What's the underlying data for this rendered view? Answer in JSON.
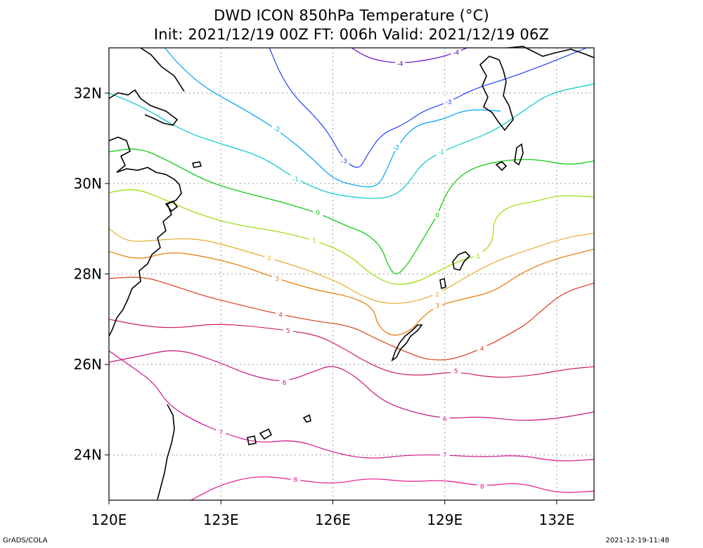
{
  "title": "DWD ICON 850hPa Temperature (°C)",
  "subtitle": "Init: 2021/12/19 00Z  FT: 006h  Valid: 2021/12/19 06Z",
  "footer_left": "GrADS/COLA",
  "footer_right": "2021-12-19-11:48",
  "chart_data": {
    "type": "contour",
    "title": "DWD ICON 850hPa Temperature (°C)",
    "subtitle": "Init: 2021/12/19 00Z  FT: 006h  Valid: 2021/12/19 06Z",
    "xlim": [
      120,
      133
    ],
    "ylim": [
      23,
      33
    ],
    "x_ticks": [
      120,
      123,
      126,
      129,
      132
    ],
    "x_tick_labels": [
      "120E",
      "123E",
      "126E",
      "129E",
      "132E"
    ],
    "y_ticks": [
      24,
      26,
      28,
      30,
      32
    ],
    "y_tick_labels": [
      "24N",
      "26N",
      "28N",
      "30N",
      "32N"
    ],
    "grid": true,
    "contour_interval": 1,
    "levels": [
      {
        "value": -4,
        "color": "#6e00c8",
        "label": "-4",
        "points": [
          [
            126.5,
            33.0
          ],
          [
            127.0,
            32.75
          ],
          [
            127.8,
            32.65
          ],
          [
            128.7,
            32.75
          ],
          [
            129.3,
            32.9
          ],
          [
            129.6,
            33.0
          ]
        ]
      },
      {
        "value": -3,
        "color": "#1e3cff",
        "label": "-3",
        "points": [
          [
            124.3,
            33.0
          ],
          [
            124.6,
            32.4
          ],
          [
            125.0,
            31.9
          ],
          [
            125.5,
            31.5
          ],
          [
            125.9,
            31.1
          ],
          [
            126.3,
            30.5
          ],
          [
            126.7,
            30.3
          ],
          [
            126.9,
            30.6
          ],
          [
            127.3,
            31.1
          ],
          [
            127.9,
            31.3
          ],
          [
            128.4,
            31.6
          ],
          [
            129.1,
            31.8
          ],
          [
            129.8,
            32.1
          ],
          [
            130.6,
            32.3
          ],
          [
            131.6,
            32.6
          ],
          [
            132.8,
            33.0
          ]
        ]
      },
      {
        "value": -2,
        "color": "#00a0ff",
        "label": "-2",
        "points": [
          [
            121.5,
            33.0
          ],
          [
            121.9,
            32.6
          ],
          [
            122.6,
            32.1
          ],
          [
            123.5,
            31.7
          ],
          [
            124.5,
            31.2
          ],
          [
            125.4,
            30.6
          ],
          [
            126.0,
            30.1
          ],
          [
            126.6,
            29.95
          ],
          [
            127.2,
            29.9
          ],
          [
            127.5,
            30.4
          ],
          [
            127.7,
            30.8
          ],
          [
            128.2,
            31.3
          ],
          [
            128.9,
            31.4
          ],
          [
            129.6,
            31.65
          ],
          [
            130.5,
            31.6
          ]
        ]
      },
      {
        "value": -1,
        "color": "#00c8c8",
        "label": "-1",
        "points": [
          [
            120.0,
            32.0
          ],
          [
            120.9,
            31.7
          ],
          [
            122.0,
            31.15
          ],
          [
            123.1,
            30.85
          ],
          [
            124.1,
            30.6
          ],
          [
            125.0,
            30.1
          ],
          [
            125.8,
            29.8
          ],
          [
            126.5,
            29.7
          ],
          [
            127.3,
            29.65
          ],
          [
            127.8,
            29.8
          ],
          [
            128.1,
            30.1
          ],
          [
            128.4,
            30.45
          ],
          [
            128.9,
            30.7
          ],
          [
            129.5,
            30.9
          ],
          [
            130.3,
            31.15
          ],
          [
            131.1,
            31.6
          ],
          [
            131.8,
            32.0
          ],
          [
            133.0,
            32.2
          ]
        ]
      },
      {
        "value": 0,
        "color": "#00c800",
        "label": "0",
        "points": [
          [
            120.0,
            30.7
          ],
          [
            120.8,
            30.8
          ],
          [
            121.6,
            30.5
          ],
          [
            122.6,
            30.05
          ],
          [
            123.6,
            29.8
          ],
          [
            124.6,
            29.6
          ],
          [
            125.6,
            29.35
          ],
          [
            126.4,
            29.05
          ],
          [
            126.9,
            28.9
          ],
          [
            127.3,
            28.6
          ],
          [
            127.5,
            28.15
          ],
          [
            127.7,
            27.95
          ],
          [
            128.0,
            28.2
          ],
          [
            128.4,
            28.75
          ],
          [
            128.8,
            29.3
          ],
          [
            129.1,
            29.9
          ],
          [
            129.6,
            30.3
          ],
          [
            130.4,
            30.5
          ],
          [
            131.4,
            30.55
          ],
          [
            132.3,
            30.4
          ],
          [
            133.0,
            30.5
          ]
        ]
      },
      {
        "value": 1,
        "color": "#96dc00",
        "label": "1",
        "points": [
          [
            120.0,
            29.8
          ],
          [
            120.7,
            29.9
          ],
          [
            121.5,
            29.65
          ],
          [
            122.3,
            29.35
          ],
          [
            123.3,
            29.1
          ],
          [
            124.5,
            28.95
          ],
          [
            125.5,
            28.75
          ],
          [
            126.4,
            28.45
          ],
          [
            127.0,
            28.0
          ],
          [
            127.6,
            27.75
          ],
          [
            128.2,
            27.8
          ],
          [
            128.8,
            28.05
          ],
          [
            129.4,
            28.3
          ],
          [
            129.9,
            28.4
          ],
          [
            130.3,
            28.7
          ],
          [
            130.3,
            29.2
          ],
          [
            130.7,
            29.5
          ],
          [
            131.4,
            29.6
          ],
          [
            132.1,
            29.75
          ],
          [
            133.0,
            29.7
          ]
        ]
      },
      {
        "value": 2,
        "color": "#e6aa28",
        "label": "2",
        "points": [
          [
            120.0,
            29.0
          ],
          [
            120.5,
            28.7
          ],
          [
            121.3,
            28.75
          ],
          [
            122.3,
            28.8
          ],
          [
            123.3,
            28.6
          ],
          [
            124.3,
            28.35
          ],
          [
            125.3,
            28.1
          ],
          [
            126.2,
            27.8
          ],
          [
            126.7,
            27.55
          ],
          [
            127.3,
            27.35
          ],
          [
            128.0,
            27.35
          ],
          [
            128.8,
            27.55
          ],
          [
            129.6,
            27.95
          ],
          [
            130.4,
            28.3
          ],
          [
            131.3,
            28.55
          ],
          [
            132.2,
            28.8
          ],
          [
            133.0,
            28.9
          ]
        ]
      },
      {
        "value": 3,
        "color": "#e67800",
        "label": "3",
        "points": [
          [
            120.0,
            28.5
          ],
          [
            120.8,
            28.3
          ],
          [
            121.6,
            28.5
          ],
          [
            122.5,
            28.4
          ],
          [
            123.5,
            28.2
          ],
          [
            124.5,
            27.9
          ],
          [
            125.5,
            27.65
          ],
          [
            126.5,
            27.5
          ],
          [
            127.1,
            27.25
          ],
          [
            127.2,
            26.85
          ],
          [
            127.6,
            26.6
          ],
          [
            128.1,
            26.75
          ],
          [
            128.4,
            27.05
          ],
          [
            128.8,
            27.3
          ],
          [
            129.5,
            27.45
          ],
          [
            130.3,
            27.6
          ],
          [
            131.0,
            28.0
          ],
          [
            131.8,
            28.3
          ],
          [
            133.0,
            28.55
          ]
        ]
      },
      {
        "value": 4,
        "color": "#dc3c1e",
        "label": "4",
        "points": [
          [
            120.0,
            27.9
          ],
          [
            120.9,
            27.95
          ],
          [
            121.7,
            27.75
          ],
          [
            122.6,
            27.5
          ],
          [
            123.6,
            27.3
          ],
          [
            124.6,
            27.1
          ],
          [
            125.6,
            26.95
          ],
          [
            126.5,
            26.85
          ],
          [
            127.2,
            26.55
          ],
          [
            127.9,
            26.3
          ],
          [
            128.5,
            26.1
          ],
          [
            129.2,
            26.1
          ],
          [
            130.0,
            26.35
          ],
          [
            130.8,
            26.7
          ],
          [
            131.2,
            26.9
          ],
          [
            131.6,
            27.2
          ],
          [
            132.2,
            27.6
          ],
          [
            133.0,
            27.8
          ]
        ]
      },
      {
        "value": 5,
        "color": "#d21e5a",
        "label": "5",
        "points": [
          [
            120.0,
            27.0
          ],
          [
            120.9,
            26.85
          ],
          [
            121.8,
            26.8
          ],
          [
            122.8,
            26.9
          ],
          [
            123.8,
            26.85
          ],
          [
            124.8,
            26.75
          ],
          [
            125.6,
            26.65
          ],
          [
            126.3,
            26.35
          ],
          [
            126.9,
            26.05
          ],
          [
            127.6,
            25.8
          ],
          [
            128.4,
            25.75
          ],
          [
            129.3,
            25.85
          ],
          [
            130.3,
            25.7
          ],
          [
            131.3,
            25.75
          ],
          [
            132.3,
            25.9
          ],
          [
            133.0,
            25.95
          ]
        ]
      },
      {
        "value": 6,
        "color": "#c8147a",
        "label": "6",
        "points": [
          [
            120.0,
            26.05
          ],
          [
            120.9,
            26.2
          ],
          [
            121.8,
            26.35
          ],
          [
            122.8,
            26.1
          ],
          [
            123.8,
            25.75
          ],
          [
            124.7,
            25.6
          ],
          [
            125.5,
            25.85
          ],
          [
            126.0,
            26.0
          ],
          [
            126.6,
            25.75
          ],
          [
            127.3,
            25.2
          ],
          [
            128.1,
            24.95
          ],
          [
            129.0,
            24.8
          ],
          [
            130.0,
            24.85
          ],
          [
            131.0,
            24.75
          ],
          [
            132.0,
            24.8
          ],
          [
            133.0,
            24.95
          ]
        ]
      },
      {
        "value": 7,
        "color": "#d2148c",
        "label": "7",
        "points": [
          [
            120.0,
            26.3
          ],
          [
            120.7,
            25.9
          ],
          [
            121.2,
            25.6
          ],
          [
            121.6,
            25.1
          ],
          [
            122.3,
            24.75
          ],
          [
            123.0,
            24.5
          ],
          [
            124.0,
            24.25
          ],
          [
            125.0,
            24.35
          ],
          [
            126.0,
            24.05
          ],
          [
            127.0,
            23.9
          ],
          [
            128.0,
            24.0
          ],
          [
            129.0,
            24.0
          ],
          [
            130.0,
            23.95
          ],
          [
            131.0,
            24.0
          ],
          [
            132.0,
            23.85
          ],
          [
            133.0,
            23.9
          ]
        ]
      },
      {
        "value": 8,
        "color": "#e6148c",
        "label": "8",
        "points": [
          [
            122.2,
            23.0
          ],
          [
            123.0,
            23.35
          ],
          [
            124.0,
            23.55
          ],
          [
            125.0,
            23.45
          ],
          [
            126.0,
            23.35
          ],
          [
            127.0,
            23.5
          ],
          [
            128.0,
            23.4
          ],
          [
            129.0,
            23.45
          ],
          [
            130.0,
            23.3
          ],
          [
            131.0,
            23.4
          ],
          [
            132.0,
            23.15
          ],
          [
            133.0,
            23.2
          ]
        ]
      }
    ]
  }
}
